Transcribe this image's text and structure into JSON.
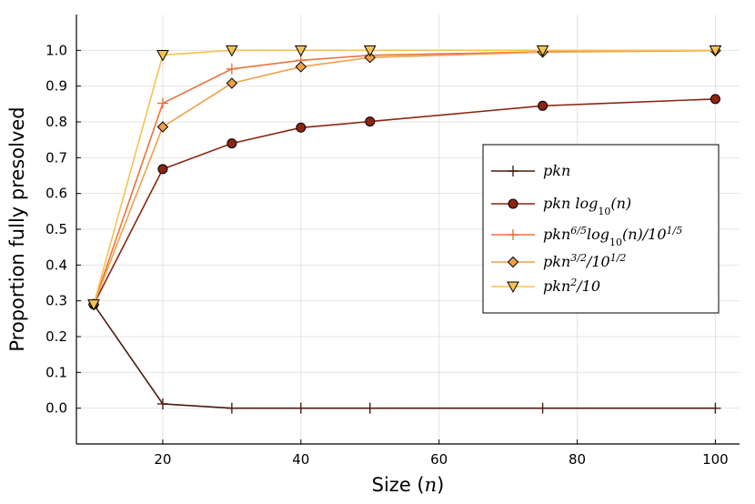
{
  "chart_data": {
    "type": "line",
    "title": "",
    "xlabel": "Size (",
    "xlabel_var": "n",
    "xlabel_close": ")",
    "ylabel": "Proportion fully presolved",
    "xlim": [
      7.5,
      103.5
    ],
    "ylim": [
      -0.1,
      1.1
    ],
    "xticks": [
      20,
      40,
      60,
      80,
      100
    ],
    "yticks": [
      0.0,
      0.1,
      0.2,
      0.3,
      0.4,
      0.5,
      0.6,
      0.7,
      0.8,
      0.9,
      1.0
    ],
    "ytick_labels": [
      "0.0",
      "0.1",
      "0.2",
      "0.3",
      "0.4",
      "0.5",
      "0.6",
      "0.7",
      "0.8",
      "0.9",
      "1.0"
    ],
    "grid": true,
    "legend_position": "right",
    "x": [
      10,
      20,
      30,
      40,
      50,
      75,
      100
    ],
    "series": [
      {
        "name": "pkn",
        "legend_html": "pkn",
        "color": "#4a1c10",
        "marker": "plus",
        "values": [
          0.29,
          0.012,
          0.0,
          0.0,
          0.0,
          0.0,
          0.0
        ]
      },
      {
        "name": "pkn log10(n)",
        "legend_html": "pkn log<tspan baseline-shift='sub' font-size='11' font-style='normal'>10</tspan>(n)",
        "color": "#8b2510",
        "marker": "circle",
        "values": [
          0.29,
          0.668,
          0.74,
          0.784,
          0.801,
          0.845,
          0.864
        ]
      },
      {
        "name": "pkn^(6/5) log10(n)/10^(1/5)",
        "legend_html": "pkn<tspan baseline-shift='super' font-size='11'>6/5</tspan>log<tspan baseline-shift='sub' font-size='11' font-style='normal'>10</tspan>(n)/10<tspan baseline-shift='super' font-size='11'>1/5</tspan>",
        "color": "#e8743b",
        "marker": "plus",
        "values": [
          0.29,
          0.852,
          0.948,
          0.972,
          0.986,
          0.996,
          1.0
        ]
      },
      {
        "name": "pkn^(3/2)/10^(1/2)",
        "legend_html": "pkn<tspan baseline-shift='super' font-size='11'>3/2</tspan>/10<tspan baseline-shift='super' font-size='11'>1/2</tspan>",
        "color": "#f0a04b",
        "marker": "diamond",
        "values": [
          0.29,
          0.786,
          0.908,
          0.954,
          0.98,
          0.995,
          0.999
        ]
      },
      {
        "name": "pkn^2/10",
        "legend_html": "pkn<tspan baseline-shift='super' font-size='11'>2</tspan>/10",
        "color": "#f5c253",
        "marker": "triangle",
        "values": [
          0.29,
          0.987,
          1.0,
          1.0,
          1.0,
          1.0,
          1.0
        ]
      }
    ]
  }
}
